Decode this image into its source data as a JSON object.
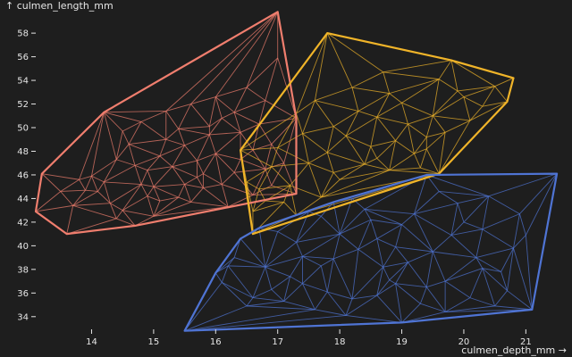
{
  "chart_data": {
    "type": "scatter",
    "title": "",
    "xlabel": "culmen_depth_mm →",
    "ylabel": "↑ culmen_length_mm",
    "xlim": [
      13.1,
      21.6
    ],
    "ylim": [
      32.7,
      60.2
    ],
    "xticks": [
      14,
      15,
      16,
      17,
      18,
      19,
      20,
      21
    ],
    "yticks": [
      34,
      36,
      38,
      40,
      42,
      44,
      46,
      48,
      50,
      52,
      54,
      56,
      58
    ],
    "grid": false,
    "legend": "none",
    "series": [
      {
        "color": "#f07e6e",
        "points": [
          [
            13.1,
            42.9
          ],
          [
            13.2,
            46.1
          ],
          [
            13.6,
            41.0
          ],
          [
            14.2,
            51.3
          ],
          [
            14.7,
            41.7
          ],
          [
            17.0,
            59.8
          ],
          [
            17.3,
            50.8
          ],
          [
            17.3,
            44.4
          ],
          [
            17.0,
            55.9
          ],
          [
            14.4,
            47.3
          ],
          [
            16.4,
            49.6
          ],
          [
            15.5,
            45.2
          ],
          [
            14.5,
            43.0
          ],
          [
            16.0,
            47.8
          ],
          [
            15.2,
            49.0
          ],
          [
            14.1,
            44.6
          ],
          [
            16.8,
            46.5
          ],
          [
            15.8,
            44.9
          ],
          [
            14.9,
            46.4
          ],
          [
            16.3,
            51.3
          ],
          [
            13.7,
            43.4
          ],
          [
            15.1,
            43.8
          ],
          [
            16.5,
            53.4
          ],
          [
            14.8,
            50.5
          ],
          [
            15.9,
            50.1
          ],
          [
            16.9,
            48.6
          ],
          [
            14.2,
            45.4
          ],
          [
            15.7,
            47.2
          ],
          [
            15.3,
            46.7
          ],
          [
            13.9,
            44.7
          ],
          [
            16.1,
            45.2
          ],
          [
            15.6,
            52.0
          ],
          [
            16.6,
            44.3
          ],
          [
            14.6,
            48.6
          ],
          [
            15.0,
            42.5
          ],
          [
            16.2,
            43.3
          ],
          [
            15.5,
            48.5
          ],
          [
            14.3,
            43.6
          ],
          [
            16.7,
            50.3
          ],
          [
            14.0,
            45.9
          ],
          [
            15.4,
            44.1
          ],
          [
            15.8,
            46.1
          ],
          [
            16.4,
            47.3
          ],
          [
            14.9,
            44.2
          ],
          [
            15.2,
            51.4
          ],
          [
            14.5,
            49.7
          ],
          [
            16.9,
            45.1
          ],
          [
            13.8,
            45.6
          ],
          [
            16.0,
            52.6
          ],
          [
            15.6,
            43.7
          ],
          [
            16.6,
            48.1
          ],
          [
            14.4,
            42.3
          ],
          [
            15.1,
            47.6
          ],
          [
            16.3,
            46.2
          ],
          [
            17.1,
            47.0
          ],
          [
            15.9,
            49.4
          ],
          [
            14.8,
            45.2
          ],
          [
            16.1,
            50.8
          ],
          [
            14.7,
            46.8
          ],
          [
            15.4,
            49.9
          ],
          [
            13.5,
            44.6
          ],
          [
            16.8,
            52.3
          ],
          [
            15.7,
            45.8
          ],
          [
            15.0,
            45.0
          ]
        ]
      },
      {
        "color": "#f0b429",
        "points": [
          [
            16.4,
            48.1
          ],
          [
            16.6,
            41.0
          ],
          [
            17.3,
            42.6
          ],
          [
            17.8,
            58.0
          ],
          [
            19.8,
            55.7
          ],
          [
            20.8,
            54.2
          ],
          [
            20.7,
            52.2
          ],
          [
            19.6,
            46.1
          ],
          [
            20.1,
            50.6
          ],
          [
            18.5,
            48.4
          ],
          [
            17.5,
            47.0
          ],
          [
            19.0,
            52.1
          ],
          [
            17.9,
            50.1
          ],
          [
            18.8,
            46.4
          ],
          [
            16.8,
            43.8
          ],
          [
            19.4,
            49.2
          ],
          [
            18.2,
            53.4
          ],
          [
            17.2,
            45.1
          ],
          [
            20.3,
            51.8
          ],
          [
            18.6,
            50.9
          ],
          [
            17.4,
            49.5
          ],
          [
            19.2,
            47.8
          ],
          [
            18.0,
            45.6
          ],
          [
            16.9,
            46.7
          ],
          [
            19.9,
            53.1
          ],
          [
            18.4,
            46.9
          ],
          [
            17.6,
            52.3
          ],
          [
            19.5,
            51.0
          ],
          [
            16.7,
            44.8
          ],
          [
            18.9,
            48.9
          ],
          [
            20.5,
            53.5
          ],
          [
            17.8,
            47.9
          ],
          [
            18.3,
            51.4
          ],
          [
            19.7,
            49.6
          ],
          [
            17.1,
            43.7
          ],
          [
            18.7,
            54.7
          ],
          [
            19.3,
            46.6
          ],
          [
            17.0,
            48.3
          ],
          [
            20.0,
            52.6
          ],
          [
            18.1,
            49.3
          ],
          [
            16.5,
            45.4
          ],
          [
            19.1,
            50.3
          ],
          [
            17.7,
            44.1
          ],
          [
            18.6,
            47.4
          ],
          [
            17.3,
            51.2
          ],
          [
            19.6,
            54.1
          ],
          [
            18.8,
            52.9
          ],
          [
            16.6,
            42.9
          ],
          [
            17.9,
            46.2
          ],
          [
            19.4,
            48.2
          ]
        ]
      },
      {
        "color": "#4f74d4",
        "points": [
          [
            15.5,
            32.8
          ],
          [
            16.0,
            37.7
          ],
          [
            17.0,
            41.2
          ],
          [
            17.7,
            42.5
          ],
          [
            19.4,
            46.0
          ],
          [
            21.5,
            46.1
          ],
          [
            21.1,
            34.6
          ],
          [
            19.0,
            33.5
          ],
          [
            17.9,
            38.9
          ],
          [
            18.6,
            40.6
          ],
          [
            19.7,
            37.0
          ],
          [
            20.3,
            41.4
          ],
          [
            16.9,
            36.3
          ],
          [
            18.2,
            35.5
          ],
          [
            20.8,
            39.8
          ],
          [
            17.4,
            39.1
          ],
          [
            19.2,
            42.7
          ],
          [
            18.9,
            36.8
          ],
          [
            16.5,
            34.9
          ],
          [
            20.1,
            35.6
          ],
          [
            17.2,
            37.4
          ],
          [
            18.4,
            43.1
          ],
          [
            19.9,
            43.6
          ],
          [
            20.6,
            37.8
          ],
          [
            16.3,
            39.0
          ],
          [
            18.0,
            41.0
          ],
          [
            19.5,
            39.5
          ],
          [
            17.6,
            34.6
          ],
          [
            20.9,
            42.7
          ],
          [
            18.7,
            38.2
          ],
          [
            16.7,
            41.5
          ],
          [
            19.3,
            35.1
          ],
          [
            17.8,
            36.1
          ],
          [
            20.4,
            44.2
          ],
          [
            18.3,
            39.7
          ],
          [
            16.1,
            36.9
          ],
          [
            19.0,
            41.8
          ],
          [
            17.5,
            42.9
          ],
          [
            20.7,
            36.2
          ],
          [
            18.1,
            34.1
          ],
          [
            19.6,
            44.6
          ],
          [
            17.3,
            40.3
          ],
          [
            18.8,
            37.1
          ],
          [
            16.8,
            38.2
          ],
          [
            20.2,
            39.0
          ],
          [
            19.8,
            40.9
          ],
          [
            17.1,
            35.3
          ],
          [
            18.5,
            42.2
          ],
          [
            21.0,
            40.9
          ],
          [
            16.4,
            40.6
          ],
          [
            19.1,
            38.6
          ],
          [
            17.9,
            43.7
          ],
          [
            20.5,
            34.9
          ],
          [
            18.6,
            35.8
          ],
          [
            16.6,
            35.6
          ],
          [
            19.4,
            36.5
          ],
          [
            17.7,
            38.3
          ],
          [
            20.0,
            42.0
          ],
          [
            18.2,
            44.0
          ],
          [
            16.2,
            38.3
          ],
          [
            19.7,
            34.4
          ],
          [
            17.4,
            36.8
          ],
          [
            18.9,
            39.9
          ],
          [
            20.3,
            38.1
          ]
        ]
      }
    ]
  }
}
